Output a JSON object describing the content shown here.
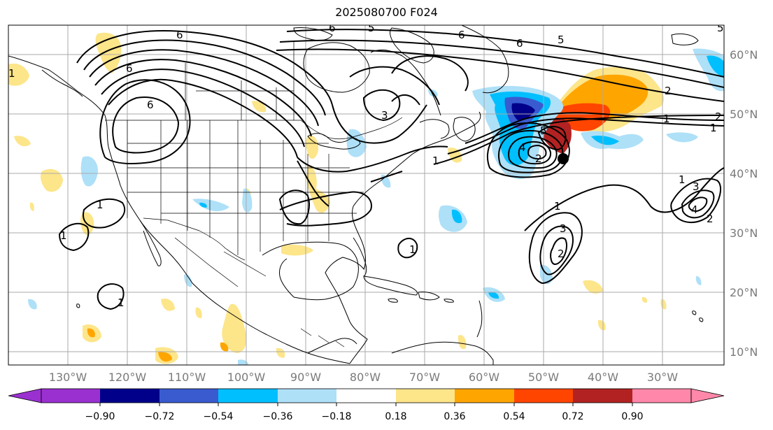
{
  "title": "2025080700 F024",
  "map": {
    "lon_labels": [
      "130°W",
      "120°W",
      "110°W",
      "100°W",
      "90°W",
      "80°W",
      "70°W",
      "60°W",
      "50°W",
      "40°W",
      "30°W"
    ],
    "lat_labels": [
      "60°N",
      "50°N",
      "40°N",
      "30°N",
      "20°N",
      "10°N"
    ]
  },
  "contour_labels": [
    "6",
    "6",
    "6",
    "5",
    "6",
    "5",
    "6",
    "1",
    "6",
    "3",
    "5",
    "2",
    "2",
    "1",
    "1",
    "1",
    "1",
    "1",
    "4",
    "5",
    "1",
    "3",
    "2",
    "4",
    "2",
    "3",
    "1",
    "2",
    "1",
    "1"
  ],
  "colorbar": {
    "ticks": [
      "−0.90",
      "−0.72",
      "−0.54",
      "−0.36",
      "−0.18",
      "0.18",
      "0.36",
      "0.54",
      "0.72",
      "0.90"
    ],
    "colors": [
      "#9b30d0",
      "#00008b",
      "#3a5bd0",
      "#00bfff",
      "#aee0f8",
      "#ffffff",
      "#fde58a",
      "#ffa500",
      "#ff4500",
      "#b22222",
      "#ff88aa"
    ]
  },
  "colors": {
    "land_outline": "#000000",
    "contour": "#000000",
    "grid": "#aaaaaa",
    "storm_marker": "#000000"
  }
}
